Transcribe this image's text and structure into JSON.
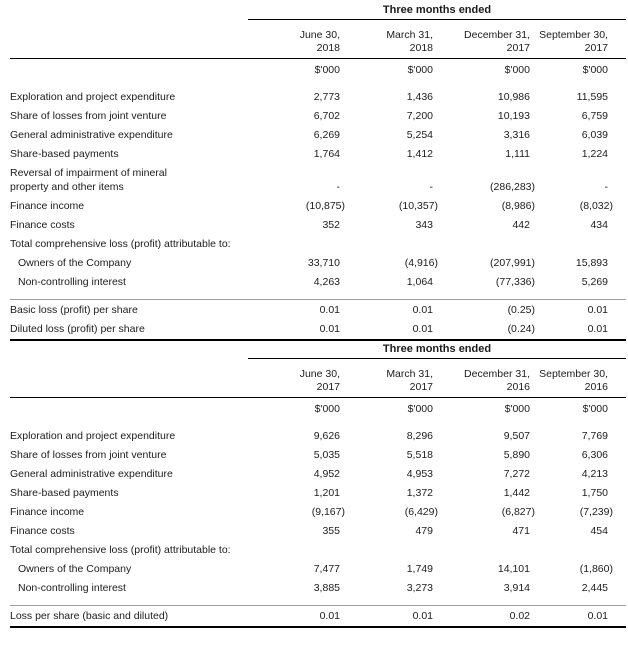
{
  "page": {
    "background": "#ffffff",
    "text_color": "#1c1c1c",
    "rule_color": "#000000",
    "separator_color": "#9e9e9e"
  },
  "tables": [
    {
      "period_header": "Three months ended",
      "columns": [
        "June 30,\n2018",
        "March 31,\n2018",
        "December 31,\n2017",
        "September 30,\n2017"
      ],
      "unit_label": "$'000",
      "rows": [
        {
          "label": "Exploration and project expenditure",
          "values": [
            "2,773",
            "1,436",
            "10,986",
            "11,595"
          ]
        },
        {
          "label": "Share of losses from joint venture",
          "values": [
            "6,702",
            "7,200",
            "10,193",
            "6,759"
          ]
        },
        {
          "label": "General administrative expenditure",
          "values": [
            "6,269",
            "5,254",
            "3,316",
            "6,039"
          ]
        },
        {
          "label": "Share-based payments",
          "values": [
            "1,764",
            "1,412",
            "1,111",
            "1,224"
          ]
        },
        {
          "label": "Reversal of impairment of mineral\nproperty and other items",
          "wrap": true,
          "values": [
            "-",
            "-",
            "(286,283)",
            "-"
          ]
        },
        {
          "label": "Finance income",
          "values": [
            "(10,875)",
            "(10,357)",
            "(8,986)",
            "(8,032)"
          ]
        },
        {
          "label": "Finance costs",
          "values": [
            "352",
            "343",
            "442",
            "434"
          ]
        },
        {
          "label": "Total comprehensive loss (profit) attributable to:",
          "values": [
            "",
            "",
            "",
            ""
          ]
        },
        {
          "label": "Owners of the Company",
          "indent": true,
          "values": [
            "33,710",
            "(4,916)",
            "(207,991)",
            "15,893"
          ]
        },
        {
          "label": "Non-controlling interest",
          "indent": true,
          "values": [
            "4,263",
            "1,064",
            "(77,336)",
            "5,269"
          ]
        }
      ],
      "per_share_rows": [
        {
          "label": "Basic loss (profit) per share",
          "values": [
            "0.01",
            "0.01",
            "(0.25)",
            "0.01"
          ]
        },
        {
          "label": "Diluted loss (profit) per share",
          "values": [
            "0.01",
            "0.01",
            "(0.24)",
            "0.01"
          ]
        }
      ]
    },
    {
      "period_header": "Three months ended",
      "columns": [
        "June 30,\n2017",
        "March 31,\n2017",
        "December 31,\n2016",
        "September 30,\n2016"
      ],
      "unit_label": "$'000",
      "rows": [
        {
          "label": "Exploration and project expenditure",
          "values": [
            "9,626",
            "8,296",
            "9,507",
            "7,769"
          ]
        },
        {
          "label": "Share of losses from joint venture",
          "values": [
            "5,035",
            "5,518",
            "5,890",
            "6,306"
          ]
        },
        {
          "label": "General administrative expenditure",
          "values": [
            "4,952",
            "4,953",
            "7,272",
            "4,213"
          ]
        },
        {
          "label": "Share-based payments",
          "values": [
            "1,201",
            "1,372",
            "1,442",
            "1,750"
          ]
        },
        {
          "label": "Finance income",
          "values": [
            "(9,167)",
            "(6,429)",
            "(6,827)",
            "(7,239)"
          ]
        },
        {
          "label": "Finance costs",
          "values": [
            "355",
            "479",
            "471",
            "454"
          ]
        },
        {
          "label": "Total comprehensive loss (profit) attributable to:",
          "values": [
            "",
            "",
            "",
            ""
          ]
        },
        {
          "label": "Owners of the Company",
          "indent": true,
          "values": [
            "7,477",
            "1,749",
            "14,101",
            "(1,860)"
          ]
        },
        {
          "label": "Non-controlling interest",
          "indent": true,
          "values": [
            "3,885",
            "3,273",
            "3,914",
            "2,445"
          ]
        }
      ],
      "per_share_rows": [
        {
          "label": "Loss per share (basic and diluted)",
          "values": [
            "0.01",
            "0.01",
            "0.02",
            "0.01"
          ]
        }
      ]
    }
  ]
}
